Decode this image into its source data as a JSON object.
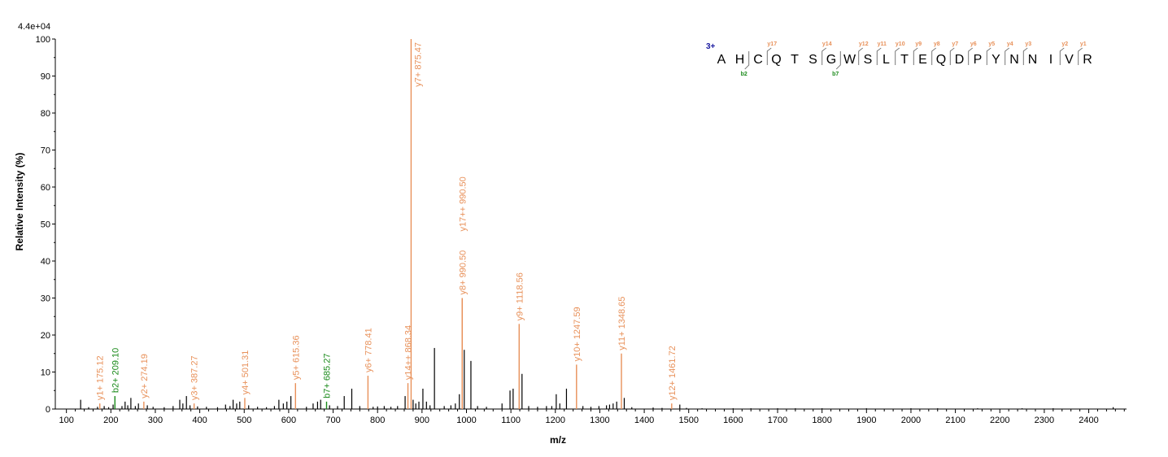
{
  "chart_data": {
    "type": "bar",
    "scale_label": "4.4e+04",
    "xlabel": "m/z",
    "ylabel": "Relative   Intensity (%)",
    "xlim": [
      75,
      2485
    ],
    "ylim": [
      0,
      100
    ],
    "x_ticks": [
      100,
      200,
      300,
      400,
      500,
      600,
      700,
      800,
      900,
      1000,
      1100,
      1200,
      1300,
      1400,
      1500,
      1600,
      1700,
      1800,
      1900,
      2000,
      2100,
      2200,
      2300,
      2400
    ],
    "y_ticks": [
      0,
      10,
      20,
      30,
      40,
      50,
      60,
      70,
      80,
      90,
      100
    ],
    "colors": {
      "y": "#e8915a",
      "b": "#1a8a1a",
      "other": "#000000",
      "charge": "#1a1aa0"
    },
    "annotated_peaks": [
      {
        "mz": 175.12,
        "intensity": 1.5,
        "type": "y",
        "label": "y1+ 175.12"
      },
      {
        "mz": 209.1,
        "intensity": 3.5,
        "type": "b",
        "label": "b2+ 209.10"
      },
      {
        "mz": 274.19,
        "intensity": 2,
        "type": "y",
        "label": "y2+ 274.19"
      },
      {
        "mz": 387.27,
        "intensity": 1.5,
        "type": "y",
        "label": "y3+ 387.27"
      },
      {
        "mz": 501.31,
        "intensity": 3,
        "type": "y",
        "label": "y4+ 501.31"
      },
      {
        "mz": 615.36,
        "intensity": 7,
        "type": "y",
        "label": "y5+ 615.36"
      },
      {
        "mz": 685.27,
        "intensity": 2,
        "type": "b",
        "label": "b7+ 685.27"
      },
      {
        "mz": 778.41,
        "intensity": 9,
        "type": "y",
        "label": "y6+ 778.41"
      },
      {
        "mz": 868.34,
        "intensity": 7,
        "type": "y",
        "label": "y14++ 868.34"
      },
      {
        "mz": 875.47,
        "intensity": 100,
        "type": "y",
        "label": "y7+ 875.47"
      },
      {
        "mz": 990.5,
        "intensity": 30,
        "type": "y",
        "label": "y8+ 990.50"
      },
      {
        "mz": 990.5,
        "intensity": 30,
        "type": "y",
        "label": "y17++ 990.50"
      },
      {
        "mz": 1118.56,
        "intensity": 23,
        "type": "y",
        "label": "y9+ 1118.56"
      },
      {
        "mz": 1247.59,
        "intensity": 12,
        "type": "y",
        "label": "y10+ 1247.59"
      },
      {
        "mz": 1348.65,
        "intensity": 15,
        "type": "y",
        "label": "y11+ 1348.65"
      },
      {
        "mz": 1461.72,
        "intensity": 1.5,
        "type": "y",
        "label": "y12+ 1461.72"
      }
    ],
    "other_peaks": [
      [
        132,
        2.5
      ],
      [
        150,
        0.5
      ],
      [
        170,
        0.6
      ],
      [
        185,
        0.8
      ],
      [
        195,
        0.5
      ],
      [
        205,
        1.2
      ],
      [
        225,
        0.8
      ],
      [
        232,
        2
      ],
      [
        238,
        1
      ],
      [
        245,
        3
      ],
      [
        255,
        0.8
      ],
      [
        262,
        1.5
      ],
      [
        282,
        1
      ],
      [
        295,
        0.6
      ],
      [
        320,
        0.5
      ],
      [
        340,
        0.8
      ],
      [
        355,
        2.5
      ],
      [
        362,
        1.5
      ],
      [
        370,
        3.5
      ],
      [
        378,
        1
      ],
      [
        395,
        0.7
      ],
      [
        415,
        0.6
      ],
      [
        440,
        0.5
      ],
      [
        458,
        1.2
      ],
      [
        468,
        0.8
      ],
      [
        475,
        2.5
      ],
      [
        483,
        1.5
      ],
      [
        490,
        2
      ],
      [
        510,
        1
      ],
      [
        530,
        0.6
      ],
      [
        550,
        0.5
      ],
      [
        568,
        0.8
      ],
      [
        578,
        2.5
      ],
      [
        588,
        1.5
      ],
      [
        596,
        2
      ],
      [
        605,
        3.5
      ],
      [
        640,
        0.6
      ],
      [
        655,
        1.5
      ],
      [
        665,
        2
      ],
      [
        672,
        2.5
      ],
      [
        692,
        1
      ],
      [
        710,
        0.8
      ],
      [
        725,
        3.5
      ],
      [
        742,
        5.5
      ],
      [
        760,
        0.8
      ],
      [
        790,
        0.6
      ],
      [
        800,
        0.7
      ],
      [
        815,
        0.8
      ],
      [
        830,
        0.6
      ],
      [
        845,
        0.8
      ],
      [
        862,
        3.5
      ],
      [
        880,
        2.5
      ],
      [
        886,
        1.5
      ],
      [
        893,
        2
      ],
      [
        902,
        5.5
      ],
      [
        910,
        2
      ],
      [
        918,
        1
      ],
      [
        928,
        16.5
      ],
      [
        950,
        0.8
      ],
      [
        965,
        1
      ],
      [
        975,
        1.5
      ],
      [
        984,
        4
      ],
      [
        995,
        16
      ],
      [
        1010,
        13
      ],
      [
        1025,
        0.8
      ],
      [
        1045,
        0.6
      ],
      [
        1080,
        1.5
      ],
      [
        1098,
        5
      ],
      [
        1105,
        5.5
      ],
      [
        1125,
        9.5
      ],
      [
        1140,
        0.8
      ],
      [
        1160,
        0.6
      ],
      [
        1180,
        0.8
      ],
      [
        1192,
        0.8
      ],
      [
        1202,
        4
      ],
      [
        1210,
        1.5
      ],
      [
        1225,
        5.5
      ],
      [
        1262,
        0.8
      ],
      [
        1280,
        0.6
      ],
      [
        1298,
        0.8
      ],
      [
        1315,
        1
      ],
      [
        1322,
        1.2
      ],
      [
        1330,
        1.5
      ],
      [
        1338,
        2
      ],
      [
        1355,
        3
      ],
      [
        1372,
        0.5
      ],
      [
        1420,
        0.4
      ],
      [
        1440,
        0.3
      ],
      [
        1480,
        1.2
      ],
      [
        1495,
        0.3
      ],
      [
        1530,
        0.2
      ],
      [
        1600,
        0.2
      ],
      [
        1640,
        0.2
      ],
      [
        1700,
        0.2
      ],
      [
        1740,
        0.2
      ],
      [
        1800,
        0.2
      ],
      [
        1900,
        0.2
      ],
      [
        2000,
        0.2
      ],
      [
        2060,
        0.2
      ],
      [
        2150,
        0.2
      ],
      [
        2250,
        0.2
      ],
      [
        2320,
        0.2
      ],
      [
        2455,
        0.5
      ]
    ]
  },
  "sequence": {
    "charge_label": "3+",
    "letters": [
      "A",
      "H",
      "C",
      "Q",
      "T",
      "S",
      "G",
      "W",
      "S",
      "L",
      "T",
      "E",
      "Q",
      "D",
      "P",
      "Y",
      "N",
      "N",
      "I",
      "V",
      "R"
    ],
    "y_marks": [
      {
        "after_index": 3,
        "label": "y17"
      },
      {
        "after_index": 6,
        "label": "y14"
      },
      {
        "after_index": 8,
        "label": "y12"
      },
      {
        "after_index": 9,
        "label": "y11"
      },
      {
        "after_index": 10,
        "label": "y10"
      },
      {
        "after_index": 11,
        "label": "y9"
      },
      {
        "after_index": 12,
        "label": "y8"
      },
      {
        "after_index": 13,
        "label": "y7"
      },
      {
        "after_index": 14,
        "label": "y6"
      },
      {
        "after_index": 15,
        "label": "y5"
      },
      {
        "after_index": 16,
        "label": "y4"
      },
      {
        "after_index": 17,
        "label": "y3"
      },
      {
        "after_index": 19,
        "label": "y2"
      },
      {
        "after_index": 20,
        "label": "y1"
      }
    ],
    "b_marks": [
      {
        "after_index": 1,
        "label": "b2"
      },
      {
        "after_index": 6,
        "label": "b7"
      }
    ]
  }
}
